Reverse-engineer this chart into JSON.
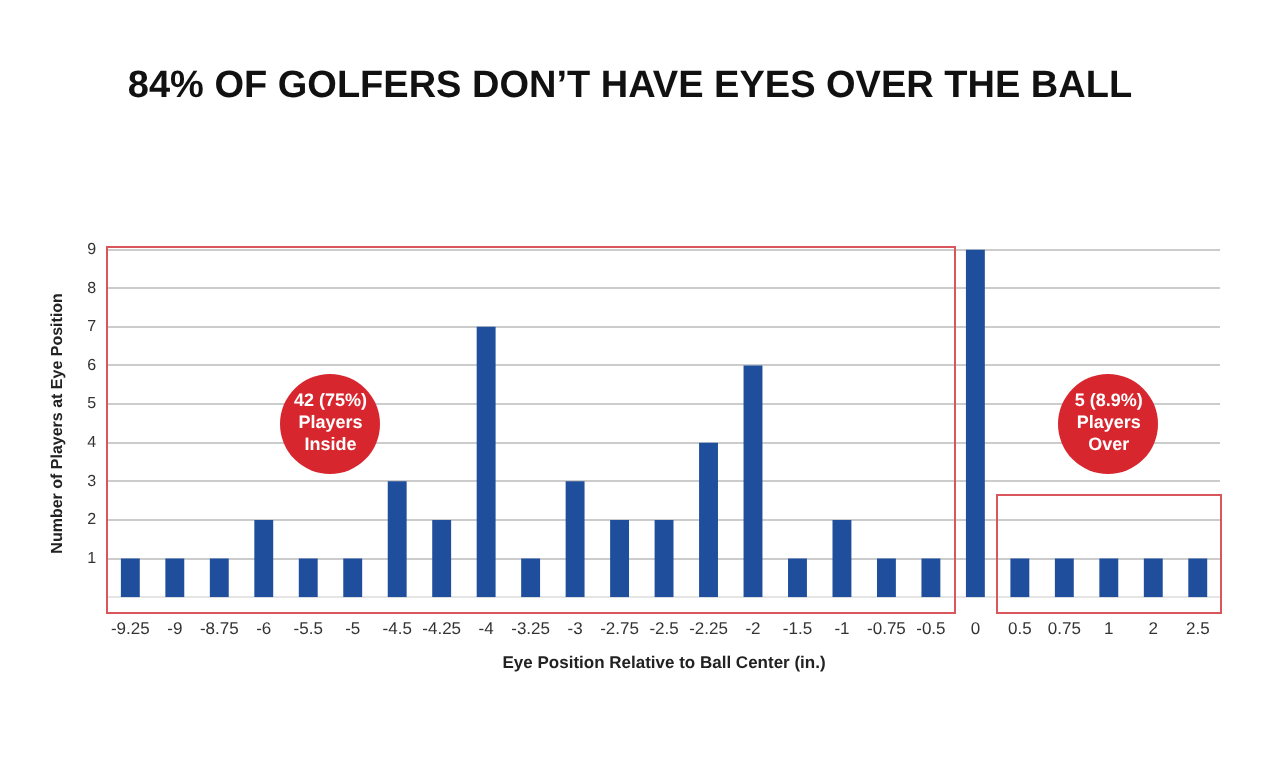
{
  "chart_data": {
    "type": "bar",
    "title": "84% OF GOLFERS DON’T HAVE EYES OVER THE BALL",
    "xlabel": "Eye Position Relative to Ball Center (in.)",
    "ylabel": "Number of Players at Eye Position",
    "categories": [
      "-9.25",
      "-9",
      "-8.75",
      "-6",
      "-5.5",
      "-5",
      "-4.5",
      "-4.25",
      "-4",
      "-3.25",
      "-3",
      "-2.75",
      "-2.5",
      "-2.25",
      "-2",
      "-1.5",
      "-1",
      "-0.75",
      "-0.5",
      "0",
      "0.5",
      "0.75",
      "1",
      "2",
      "2.5"
    ],
    "values": [
      1,
      1,
      1,
      2,
      1,
      1,
      3,
      2,
      7,
      1,
      3,
      2,
      2,
      4,
      6,
      1,
      2,
      1,
      1,
      9,
      1,
      1,
      1,
      1,
      1
    ],
    "color": "#1f4e9c",
    "ylim": [
      0,
      9
    ],
    "yticks": [
      1,
      2,
      3,
      4,
      5,
      6,
      7,
      8,
      9
    ],
    "grid": "y",
    "legend": false,
    "annotations": [
      "42 (75%) Players Inside",
      "5 (8.9%) Players Over"
    ]
  }
}
